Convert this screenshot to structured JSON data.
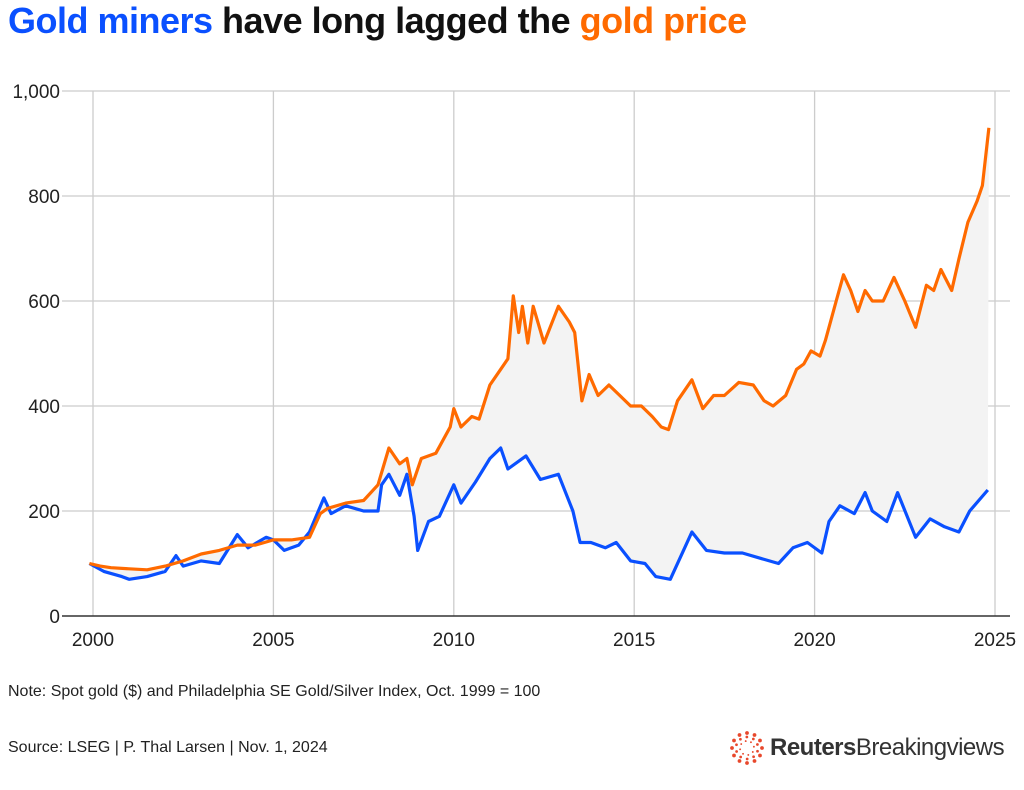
{
  "title": {
    "part1": "Gold miners",
    "part2": " have long lagged the ",
    "part3": "gold price"
  },
  "note": "Note: Spot gold ($) and Philadelphia SE Gold/Silver Index, Oct. 1999 = 100",
  "source": "Source: LSEG | P. Thal Larsen | Nov. 1, 2024",
  "logo": {
    "brand": "Reuters",
    "product": "Breakingviews"
  },
  "colors": {
    "gold": "#ff6a00",
    "miners": "#0a50ff",
    "fill": "#f3f3f3",
    "grid": "#cccccc"
  },
  "chart_data": {
    "type": "line",
    "title": "Gold miners have long lagged the gold price",
    "xlim": [
      2000,
      2025
    ],
    "ylim": [
      0,
      1000
    ],
    "xticks": [
      2000,
      2005,
      2010,
      2015,
      2020,
      2025
    ],
    "yticks": [
      0,
      200,
      400,
      600,
      800,
      1000
    ],
    "ytick_labels": [
      "0",
      "200",
      "400",
      "600",
      "800",
      "1,000"
    ],
    "grid": true,
    "series": [
      {
        "name": "Spot gold",
        "color": "#ff6a00",
        "points": [
          [
            1999.9,
            100
          ],
          [
            2000.2,
            95
          ],
          [
            2000.5,
            92
          ],
          [
            2001,
            90
          ],
          [
            2001.5,
            88
          ],
          [
            2002,
            95
          ],
          [
            2002.5,
            105
          ],
          [
            2003,
            118
          ],
          [
            2003.5,
            125
          ],
          [
            2004,
            135
          ],
          [
            2004.5,
            135
          ],
          [
            2005,
            145
          ],
          [
            2005.5,
            145
          ],
          [
            2006,
            150
          ],
          [
            2006.3,
            195
          ],
          [
            2006.5,
            205
          ],
          [
            2007,
            215
          ],
          [
            2007.5,
            220
          ],
          [
            2007.9,
            250
          ],
          [
            2008.2,
            320
          ],
          [
            2008.5,
            290
          ],
          [
            2008.7,
            300
          ],
          [
            2008.85,
            250
          ],
          [
            2009.1,
            300
          ],
          [
            2009.5,
            310
          ],
          [
            2009.9,
            360
          ],
          [
            2010,
            395
          ],
          [
            2010.2,
            360
          ],
          [
            2010.5,
            380
          ],
          [
            2010.7,
            375
          ],
          [
            2011,
            440
          ],
          [
            2011.3,
            470
          ],
          [
            2011.5,
            490
          ],
          [
            2011.65,
            610
          ],
          [
            2011.8,
            540
          ],
          [
            2011.9,
            590
          ],
          [
            2012.05,
            520
          ],
          [
            2012.2,
            590
          ],
          [
            2012.5,
            520
          ],
          [
            2012.9,
            590
          ],
          [
            2013.2,
            560
          ],
          [
            2013.35,
            540
          ],
          [
            2013.55,
            410
          ],
          [
            2013.75,
            460
          ],
          [
            2014,
            420
          ],
          [
            2014.3,
            440
          ],
          [
            2014.6,
            420
          ],
          [
            2014.9,
            400
          ],
          [
            2015.2,
            400
          ],
          [
            2015.5,
            380
          ],
          [
            2015.75,
            360
          ],
          [
            2015.95,
            355
          ],
          [
            2016.2,
            410
          ],
          [
            2016.4,
            430
          ],
          [
            2016.6,
            450
          ],
          [
            2016.9,
            395
          ],
          [
            2017.2,
            420
          ],
          [
            2017.5,
            420
          ],
          [
            2017.9,
            445
          ],
          [
            2018.3,
            440
          ],
          [
            2018.6,
            410
          ],
          [
            2018.85,
            400
          ],
          [
            2019.2,
            420
          ],
          [
            2019.5,
            470
          ],
          [
            2019.7,
            480
          ],
          [
            2019.9,
            505
          ],
          [
            2020.15,
            495
          ],
          [
            2020.3,
            525
          ],
          [
            2020.6,
            600
          ],
          [
            2020.8,
            650
          ],
          [
            2021.0,
            620
          ],
          [
            2021.2,
            580
          ],
          [
            2021.4,
            620
          ],
          [
            2021.6,
            600
          ],
          [
            2021.9,
            600
          ],
          [
            2022.2,
            645
          ],
          [
            2022.5,
            600
          ],
          [
            2022.8,
            550
          ],
          [
            2023.1,
            630
          ],
          [
            2023.3,
            620
          ],
          [
            2023.5,
            660
          ],
          [
            2023.8,
            620
          ],
          [
            2024.0,
            680
          ],
          [
            2024.25,
            750
          ],
          [
            2024.5,
            790
          ],
          [
            2024.65,
            820
          ],
          [
            2024.83,
            930
          ]
        ]
      },
      {
        "name": "Philadelphia SE Gold/Silver Index",
        "color": "#0a50ff",
        "points": [
          [
            1999.9,
            100
          ],
          [
            2000.3,
            85
          ],
          [
            2000.8,
            75
          ],
          [
            2001,
            70
          ],
          [
            2001.5,
            75
          ],
          [
            2002,
            85
          ],
          [
            2002.3,
            115
          ],
          [
            2002.5,
            95
          ],
          [
            2003,
            105
          ],
          [
            2003.5,
            100
          ],
          [
            2004,
            155
          ],
          [
            2004.3,
            130
          ],
          [
            2004.8,
            150
          ],
          [
            2005,
            145
          ],
          [
            2005.3,
            125
          ],
          [
            2005.7,
            135
          ],
          [
            2006,
            160
          ],
          [
            2006.4,
            225
          ],
          [
            2006.6,
            195
          ],
          [
            2007,
            210
          ],
          [
            2007.5,
            200
          ],
          [
            2007.9,
            200
          ],
          [
            2008,
            250
          ],
          [
            2008.2,
            270
          ],
          [
            2008.5,
            230
          ],
          [
            2008.7,
            270
          ],
          [
            2008.9,
            190
          ],
          [
            2009,
            125
          ],
          [
            2009.3,
            180
          ],
          [
            2009.6,
            190
          ],
          [
            2010,
            250
          ],
          [
            2010.2,
            215
          ],
          [
            2010.6,
            255
          ],
          [
            2011,
            300
          ],
          [
            2011.3,
            320
          ],
          [
            2011.5,
            280
          ],
          [
            2012,
            305
          ],
          [
            2012.4,
            260
          ],
          [
            2012.9,
            270
          ],
          [
            2013.3,
            200
          ],
          [
            2013.5,
            140
          ],
          [
            2013.8,
            140
          ],
          [
            2014.2,
            130
          ],
          [
            2014.5,
            140
          ],
          [
            2014.9,
            105
          ],
          [
            2015.3,
            100
          ],
          [
            2015.6,
            75
          ],
          [
            2016,
            70
          ],
          [
            2016.4,
            130
          ],
          [
            2016.6,
            160
          ],
          [
            2017,
            125
          ],
          [
            2017.5,
            120
          ],
          [
            2018,
            120
          ],
          [
            2018.5,
            110
          ],
          [
            2019,
            100
          ],
          [
            2019.4,
            130
          ],
          [
            2019.8,
            140
          ],
          [
            2020.2,
            120
          ],
          [
            2020.4,
            180
          ],
          [
            2020.7,
            210
          ],
          [
            2021.1,
            195
          ],
          [
            2021.4,
            235
          ],
          [
            2021.6,
            200
          ],
          [
            2022,
            180
          ],
          [
            2022.3,
            235
          ],
          [
            2022.8,
            150
          ],
          [
            2023.2,
            185
          ],
          [
            2023.6,
            170
          ],
          [
            2024,
            160
          ],
          [
            2024.3,
            200
          ],
          [
            2024.8,
            240
          ]
        ]
      }
    ]
  }
}
